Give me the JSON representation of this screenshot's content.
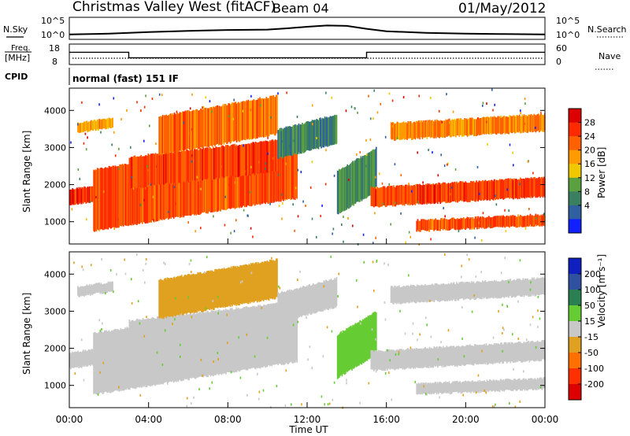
{
  "header": {
    "station": "Christmas Valley West (fitACF)",
    "beam": "Beam 04",
    "date": "01/May/2012"
  },
  "top_panels": {
    "nsky_label": "N.Sky",
    "nsearch_label": "N.Search",
    "noise_ticks": [
      "10^5",
      "10^0"
    ],
    "freq_label": "Freq.",
    "freq_unit": "[MHz]",
    "freq_ticks": [
      "18",
      "8"
    ],
    "nave_label": "Nave",
    "nave_ticks": [
      "60",
      "0"
    ],
    "cpid_label": "CPID",
    "cpid_value": "normal (fast) 151 IF",
    "freq_series": [
      {
        "t": 0.0,
        "mhz": 14.2
      },
      {
        "t": 3.0,
        "mhz": 14.2
      },
      {
        "t": 3.0,
        "mhz": 11.0
      },
      {
        "t": 15.0,
        "mhz": 11.0
      },
      {
        "t": 15.0,
        "mhz": 14.2
      },
      {
        "t": 24.0,
        "mhz": 14.2
      }
    ],
    "nsky_series": [
      {
        "t": 0,
        "v": 0.8
      },
      {
        "t": 2,
        "v": 1.0
      },
      {
        "t": 4,
        "v": 1.4
      },
      {
        "t": 6,
        "v": 1.7
      },
      {
        "t": 8,
        "v": 1.9
      },
      {
        "t": 10,
        "v": 2.0
      },
      {
        "t": 11,
        "v": 2.3
      },
      {
        "t": 12,
        "v": 2.7
      },
      {
        "t": 13,
        "v": 3.0
      },
      {
        "t": 14,
        "v": 2.9
      },
      {
        "t": 15,
        "v": 2.2
      },
      {
        "t": 16,
        "v": 1.6
      },
      {
        "t": 18,
        "v": 1.2
      },
      {
        "t": 20,
        "v": 1.0
      },
      {
        "t": 22,
        "v": 0.9
      },
      {
        "t": 24,
        "v": 0.8
      }
    ]
  },
  "chart_data": [
    {
      "type": "heatmap",
      "name": "power",
      "ylabel": "Slant Range [km]",
      "xlabel": "Time UT",
      "x_range": [
        "00:00",
        "24:00"
      ],
      "y_range": [
        400,
        4600
      ],
      "yticks": [
        1000,
        2000,
        3000,
        4000
      ],
      "xtick_labels": [
        "00:00",
        "04:00",
        "08:00",
        "12:00",
        "16:00",
        "20:00",
        "00:00"
      ],
      "colorbar": {
        "label": "Power [dB]",
        "ticks": [
          "28",
          "24",
          "20",
          "16",
          "12",
          "8",
          "4"
        ],
        "colors": [
          "#dd0000",
          "#ff2a00",
          "#ff6000",
          "#ff9a00",
          "#f0c800",
          "#5aa040",
          "#3a8060",
          "#3060a0",
          "#1020ff"
        ]
      },
      "echo_bands": [
        {
          "t0": 0.0,
          "t1": 2.8,
          "r0": 1450,
          "r1": 2100,
          "level": 26
        },
        {
          "t0": 0.4,
          "t1": 2.2,
          "r0": 3400,
          "r1": 3800,
          "level": 18
        },
        {
          "t0": 1.2,
          "t1": 11.5,
          "r0": 750,
          "r1": 3300,
          "level": 24
        },
        {
          "t0": 3.0,
          "t1": 10.5,
          "r0": 1900,
          "r1": 3200,
          "level": 25
        },
        {
          "t0": 4.5,
          "t1": 10.5,
          "r0": 2800,
          "r1": 4400,
          "level": 22
        },
        {
          "t0": 10.5,
          "t1": 13.5,
          "r0": 2700,
          "r1": 3900,
          "level": 8
        },
        {
          "t0": 13.5,
          "t1": 15.5,
          "r0": 1200,
          "r1": 3000,
          "level": 9
        },
        {
          "t0": 15.2,
          "t1": 24.0,
          "r0": 1400,
          "r1": 2200,
          "level": 25
        },
        {
          "t0": 16.2,
          "t1": 24.0,
          "r0": 3200,
          "r1": 3900,
          "level": 20
        },
        {
          "t0": 17.5,
          "t1": 24.0,
          "r0": 750,
          "r1": 1200,
          "level": 24
        }
      ]
    },
    {
      "type": "heatmap",
      "name": "velocity",
      "ylabel": "Slant Range [km]",
      "xlabel": "Time UT",
      "x_range": [
        "00:00",
        "24:00"
      ],
      "y_range": [
        400,
        4600
      ],
      "yticks": [
        1000,
        2000,
        3000,
        4000
      ],
      "xtick_labels": [
        "00:00",
        "04:00",
        "08:00",
        "12:00",
        "16:00",
        "20:00",
        "00:00"
      ],
      "colorbar": {
        "label": "Velocity [m s⁻¹]",
        "ticks": [
          "200",
          "100",
          "50",
          "15",
          "-15",
          "-50",
          "-100",
          "-200"
        ],
        "colors": [
          "#1020c0",
          "#3050a0",
          "#2a8050",
          "#66cc33",
          "#c8c8c8",
          "#e0a020",
          "#ff7000",
          "#ff3000",
          "#dd0000"
        ]
      },
      "echo_bands": [
        {
          "t0": 0.0,
          "t1": 2.8,
          "r0": 1450,
          "r1": 2100,
          "level": 0
        },
        {
          "t0": 0.4,
          "t1": 2.2,
          "r0": 3400,
          "r1": 3800,
          "level": 0
        },
        {
          "t0": 1.2,
          "t1": 11.5,
          "r0": 750,
          "r1": 3300,
          "level": 0
        },
        {
          "t0": 3.0,
          "t1": 10.5,
          "r0": 1900,
          "r1": 3200,
          "level": 0
        },
        {
          "t0": 4.5,
          "t1": 10.5,
          "r0": 2800,
          "r1": 4400,
          "level": -40
        },
        {
          "t0": 10.5,
          "t1": 13.5,
          "r0": 2700,
          "r1": 3900,
          "level": 0
        },
        {
          "t0": 13.5,
          "t1": 15.5,
          "r0": 1200,
          "r1": 3000,
          "level": 30
        },
        {
          "t0": 15.2,
          "t1": 24.0,
          "r0": 1400,
          "r1": 2200,
          "level": 0
        },
        {
          "t0": 16.2,
          "t1": 24.0,
          "r0": 3200,
          "r1": 3900,
          "level": 0
        },
        {
          "t0": 17.5,
          "t1": 24.0,
          "r0": 750,
          "r1": 1200,
          "level": 0
        }
      ]
    }
  ]
}
